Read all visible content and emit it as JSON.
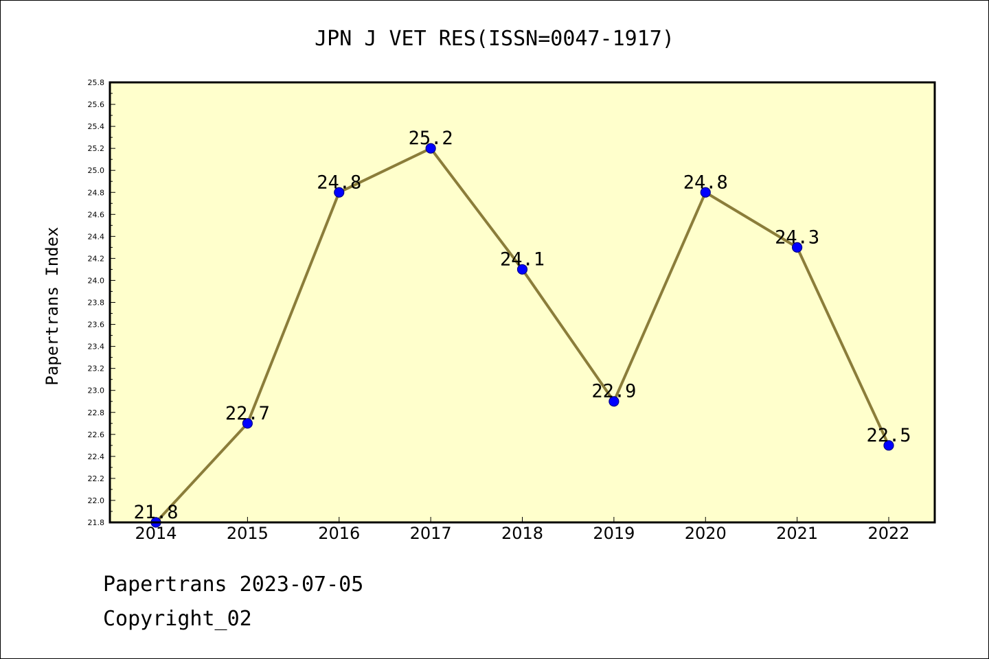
{
  "colors": {
    "plot_background": "#ffffcc",
    "line": "#8b7d3a",
    "marker": "#0000ff",
    "marker_edge": "#00008b"
  },
  "chart_data": {
    "type": "line",
    "title": "JPN J VET RES(ISSN=0047-1917)",
    "xlabel": "",
    "ylabel": "Papertrans Index",
    "categories": [
      "2014",
      "2015",
      "2016",
      "2017",
      "2018",
      "2019",
      "2020",
      "2021",
      "2022"
    ],
    "series": [
      {
        "values": [
          21.8,
          22.7,
          24.8,
          25.2,
          24.1,
          22.9,
          24.8,
          24.3,
          22.5
        ],
        "data_labels": [
          "21.8",
          "22.7",
          "24.8",
          "25.2",
          "24.1",
          "22.9",
          "24.8",
          "24.3",
          "22.5"
        ]
      }
    ],
    "ylim": [
      21.8,
      25.8
    ],
    "yticks": [
      "21.8",
      "22.0",
      "22.2",
      "22.4",
      "22.6",
      "22.8",
      "23.0",
      "23.2",
      "23.4",
      "23.6",
      "23.8",
      "24.0",
      "24.2",
      "24.4",
      "24.6",
      "24.8",
      "25.0",
      "25.2",
      "25.4",
      "25.6",
      "25.8"
    ],
    "grid": false,
    "legend": "none"
  },
  "footer": {
    "line1": "Papertrans 2023-07-05",
    "line2": "Copyright_02"
  }
}
